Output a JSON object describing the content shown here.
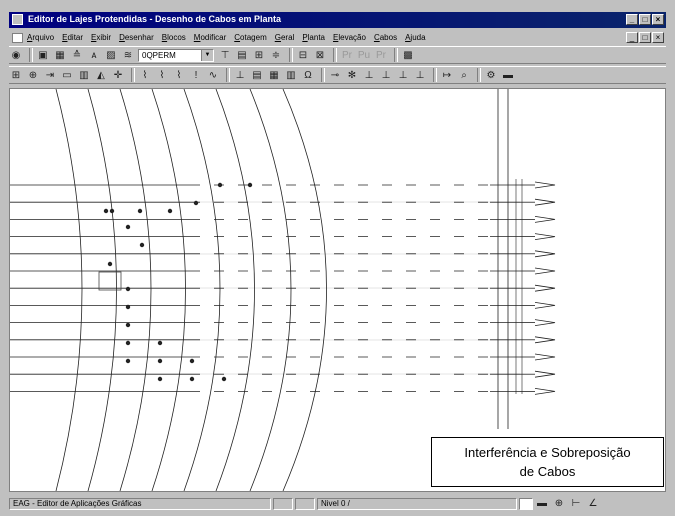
{
  "window": {
    "title": "Editor de Lajes Protendidas - Desenho de Cabos em Planta",
    "min_glyph": "_",
    "max_glyph": "□",
    "close_glyph": "×"
  },
  "menubar": {
    "items": [
      "Arquivo",
      "Editar",
      "Exibir",
      "Desenhar",
      "Blocos",
      "Modificar",
      "Cotagem",
      "Geral",
      "Planta",
      "Elevação",
      "Cabos",
      "Ajuda"
    ]
  },
  "toolbar1": {
    "layer_value": "0QPERM",
    "icons": [
      "plan-icon",
      "grid-icon",
      "align-icon",
      "text-size-icon",
      "hatch-icon",
      "cable-icon"
    ],
    "right_icons": [
      "dim-icon",
      "table-icon",
      "anchor-icon",
      "stack-icon",
      "frame-icon",
      "profile-icon"
    ],
    "pr_labels": [
      "Pr",
      "Pu",
      "Pr"
    ]
  },
  "toolbar2": {
    "icons": [
      "grid-a-icon",
      "grid-b-icon",
      "arrow-h-icon",
      "rect-icon",
      "dims-icon",
      "triangle-icon",
      "cross-icon",
      "spring-a-icon",
      "spring-b-icon",
      "spring-c-icon",
      "excl-icon",
      "wave-icon",
      "tent-icon",
      "layer-a-icon",
      "layer-b-icon",
      "layer-c-icon",
      "omega-icon",
      "snap-a-icon",
      "snap-b-icon",
      "anchor-a-icon",
      "anchor-b-icon",
      "anchor-c-icon",
      "anchor-d-icon",
      "measure-icon",
      "zoom-icon",
      "props-icon",
      "ruler-icon"
    ]
  },
  "callout": {
    "line1": "Interferência e Sobreposição",
    "line2": "de Cabos"
  },
  "statusbar": {
    "app_label": "EAG - Editor de Aplicações Gráficas",
    "level": "Nivel 0 /"
  }
}
